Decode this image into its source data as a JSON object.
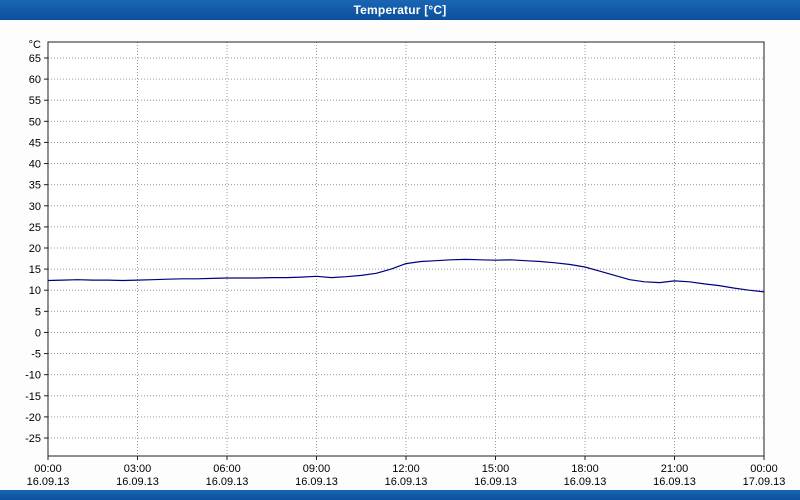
{
  "window": {
    "title": "Temperatur [°C]"
  },
  "colors": {
    "titlebar_blue": "#0f58a8",
    "grid_gray": "#9a9a9a",
    "plot_border": "#202020",
    "line_color": "#00007f"
  },
  "chart_data": {
    "type": "line",
    "title": "Temperatur [°C]",
    "ylabel": "°C",
    "xlabel": "",
    "ylim": [
      -25,
      65
    ],
    "grid": true,
    "legend": "none",
    "y_ticks": [
      65,
      60,
      55,
      50,
      45,
      40,
      35,
      30,
      25,
      20,
      15,
      10,
      5,
      0,
      -5,
      -10,
      -15,
      -20,
      -25
    ],
    "x_ticks": [
      {
        "hour": 0,
        "time": "00:00",
        "date": "16.09.13"
      },
      {
        "hour": 3,
        "time": "03:00",
        "date": "16.09.13"
      },
      {
        "hour": 6,
        "time": "06:00",
        "date": "16.09.13"
      },
      {
        "hour": 9,
        "time": "09:00",
        "date": "16.09.13"
      },
      {
        "hour": 12,
        "time": "12:00",
        "date": "16.09.13"
      },
      {
        "hour": 15,
        "time": "15:00",
        "date": "16.09.13"
      },
      {
        "hour": 18,
        "time": "18:00",
        "date": "16.09.13"
      },
      {
        "hour": 21,
        "time": "21:00",
        "date": "16.09.13"
      },
      {
        "hour": 24,
        "time": "00:00",
        "date": "17.09.13"
      }
    ],
    "series": [
      {
        "name": "Temperatur",
        "points": [
          [
            0,
            12.3
          ],
          [
            0.5,
            12.4
          ],
          [
            1,
            12.5
          ],
          [
            1.5,
            12.4
          ],
          [
            2,
            12.4
          ],
          [
            2.5,
            12.3
          ],
          [
            3,
            12.4
          ],
          [
            3.5,
            12.5
          ],
          [
            4,
            12.6
          ],
          [
            4.5,
            12.7
          ],
          [
            5,
            12.7
          ],
          [
            5.5,
            12.8
          ],
          [
            6,
            12.9
          ],
          [
            6.5,
            12.9
          ],
          [
            7,
            12.9
          ],
          [
            7.5,
            13.0
          ],
          [
            8,
            13.0
          ],
          [
            8.5,
            13.1
          ],
          [
            9,
            13.3
          ],
          [
            9.5,
            13.0
          ],
          [
            10,
            13.2
          ],
          [
            10.5,
            13.5
          ],
          [
            11,
            14.0
          ],
          [
            11.5,
            15.0
          ],
          [
            12,
            16.3
          ],
          [
            12.5,
            16.8
          ],
          [
            13,
            17.0
          ],
          [
            13.5,
            17.2
          ],
          [
            14,
            17.3
          ],
          [
            14.5,
            17.2
          ],
          [
            15,
            17.1
          ],
          [
            15.5,
            17.2
          ],
          [
            16,
            17.0
          ],
          [
            16.5,
            16.8
          ],
          [
            17,
            16.5
          ],
          [
            17.5,
            16.1
          ],
          [
            18,
            15.5
          ],
          [
            18.5,
            14.5
          ],
          [
            19,
            13.5
          ],
          [
            19.5,
            12.5
          ],
          [
            20,
            12.0
          ],
          [
            20.5,
            11.8
          ],
          [
            21,
            12.2
          ],
          [
            21.5,
            12.0
          ],
          [
            22,
            11.5
          ],
          [
            22.5,
            11.1
          ],
          [
            23,
            10.5
          ],
          [
            23.5,
            10.0
          ],
          [
            24,
            9.6
          ]
        ]
      }
    ]
  }
}
